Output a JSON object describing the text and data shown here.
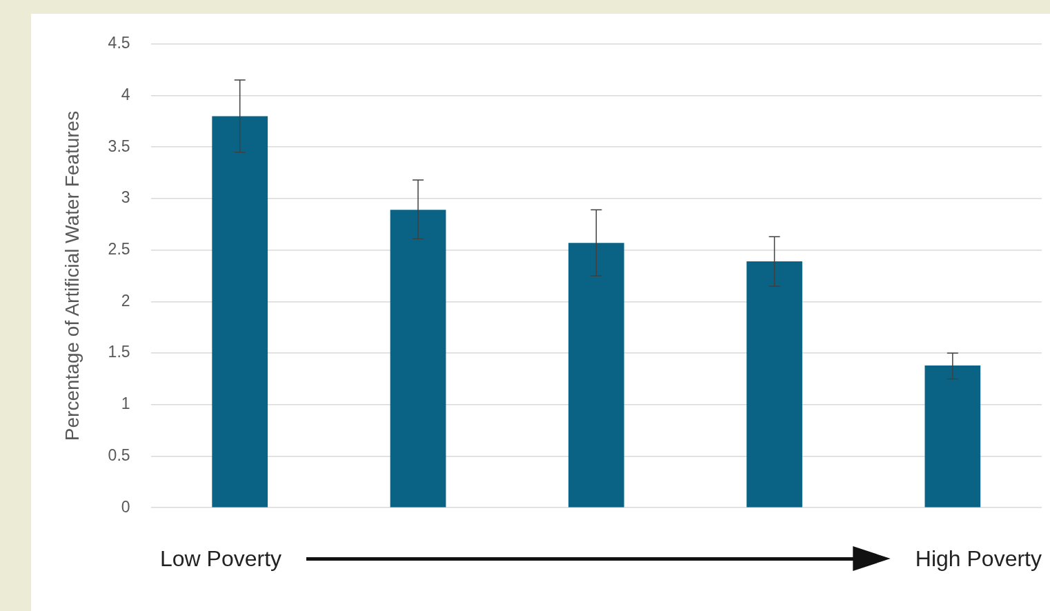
{
  "chart_data": {
    "type": "bar",
    "ylabel": "Percentage of Artificial Water Features",
    "categories": [
      null,
      null,
      null,
      null,
      null
    ],
    "values": [
      3.8,
      2.89,
      2.57,
      2.39,
      1.38
    ],
    "errors": [
      [
        3.45,
        4.15
      ],
      [
        2.61,
        3.18
      ],
      [
        2.25,
        2.89
      ],
      [
        2.15,
        2.63
      ],
      [
        1.25,
        1.5
      ]
    ],
    "color": "#0a6384",
    "ylim": [
      0,
      4.5
    ],
    "yticks": [
      0,
      0.5,
      1,
      1.5,
      2,
      2.5,
      3,
      3.5,
      4,
      4.5
    ],
    "grid": "y",
    "legend": false,
    "annotations": [
      "Low Poverty",
      "High Poverty"
    ]
  }
}
